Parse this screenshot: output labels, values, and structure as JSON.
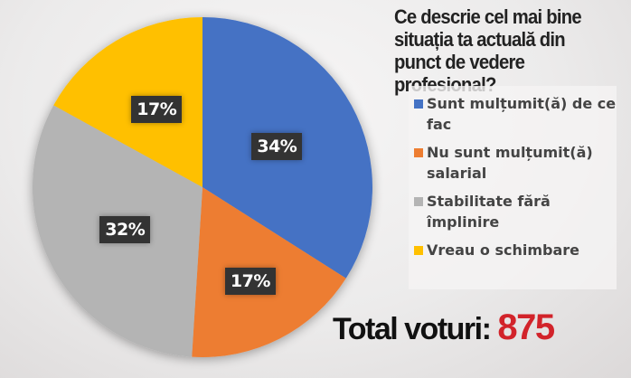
{
  "chart_data": {
    "type": "pie",
    "title": "Ce descrie cel mai bine situația ta actuală din punct de vedere profesional?",
    "categories": [
      "Sunt mulțumit(ă) de ce fac",
      "Nu sunt mulțumit(ă) salarial",
      "Stabilitate fără împlinire",
      "Vreau o schimbare"
    ],
    "values": [
      34,
      17,
      32,
      17
    ],
    "data_labels": [
      "34%",
      "17%",
      "32%",
      "17%"
    ],
    "colors": [
      "#4472c4",
      "#ed7d31",
      "#b4b4b4",
      "#ffc000"
    ],
    "legend_position": "right",
    "start": "top-clockwise"
  },
  "total": {
    "label": "Total voturi:",
    "value": "875"
  }
}
